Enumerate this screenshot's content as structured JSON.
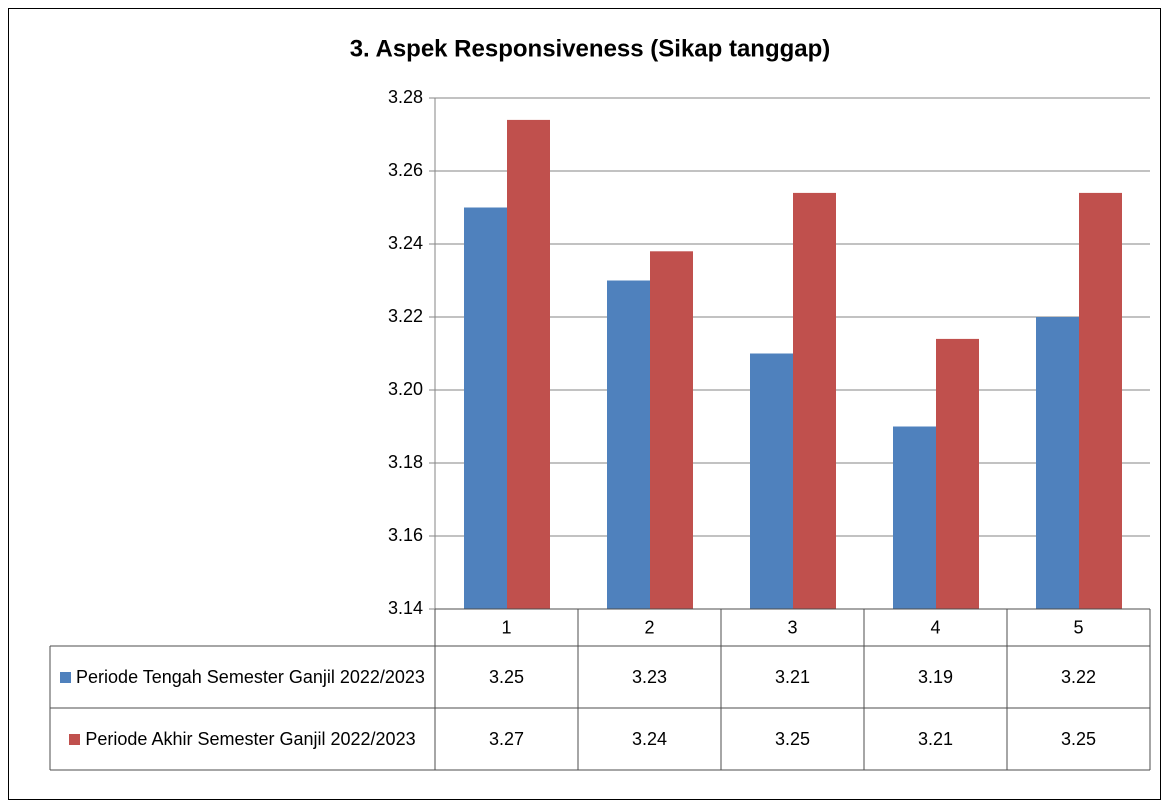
{
  "chart_data": {
    "type": "bar",
    "title": "3. Aspek Responsiveness (Sikap tanggap)",
    "categories": [
      "1",
      "2",
      "3",
      "4",
      "5"
    ],
    "series": [
      {
        "name": "Periode Tengah Semester Ganjil 2022/2023",
        "color": "#4f81bd",
        "values": [
          3.25,
          3.23,
          3.21,
          3.19,
          3.22
        ],
        "value_labels": [
          "3.25",
          "3.23",
          "3.21",
          "3.19",
          "3.22"
        ]
      },
      {
        "name": "Periode Akhir Semester Ganjil 2022/2023",
        "color": "#c0504d",
        "values": [
          3.274,
          3.238,
          3.254,
          3.214,
          3.254
        ],
        "value_labels": [
          "3.27",
          "3.24",
          "3.25",
          "3.21",
          "3.25"
        ]
      }
    ],
    "ylim": [
      3.14,
      3.28
    ],
    "yticks": [
      3.14,
      3.16,
      3.18,
      {
        "value": 3.2,
        "label": "3.20"
      },
      3.22,
      3.24,
      3.26,
      3.28
    ],
    "grid": true,
    "data_table": true
  }
}
